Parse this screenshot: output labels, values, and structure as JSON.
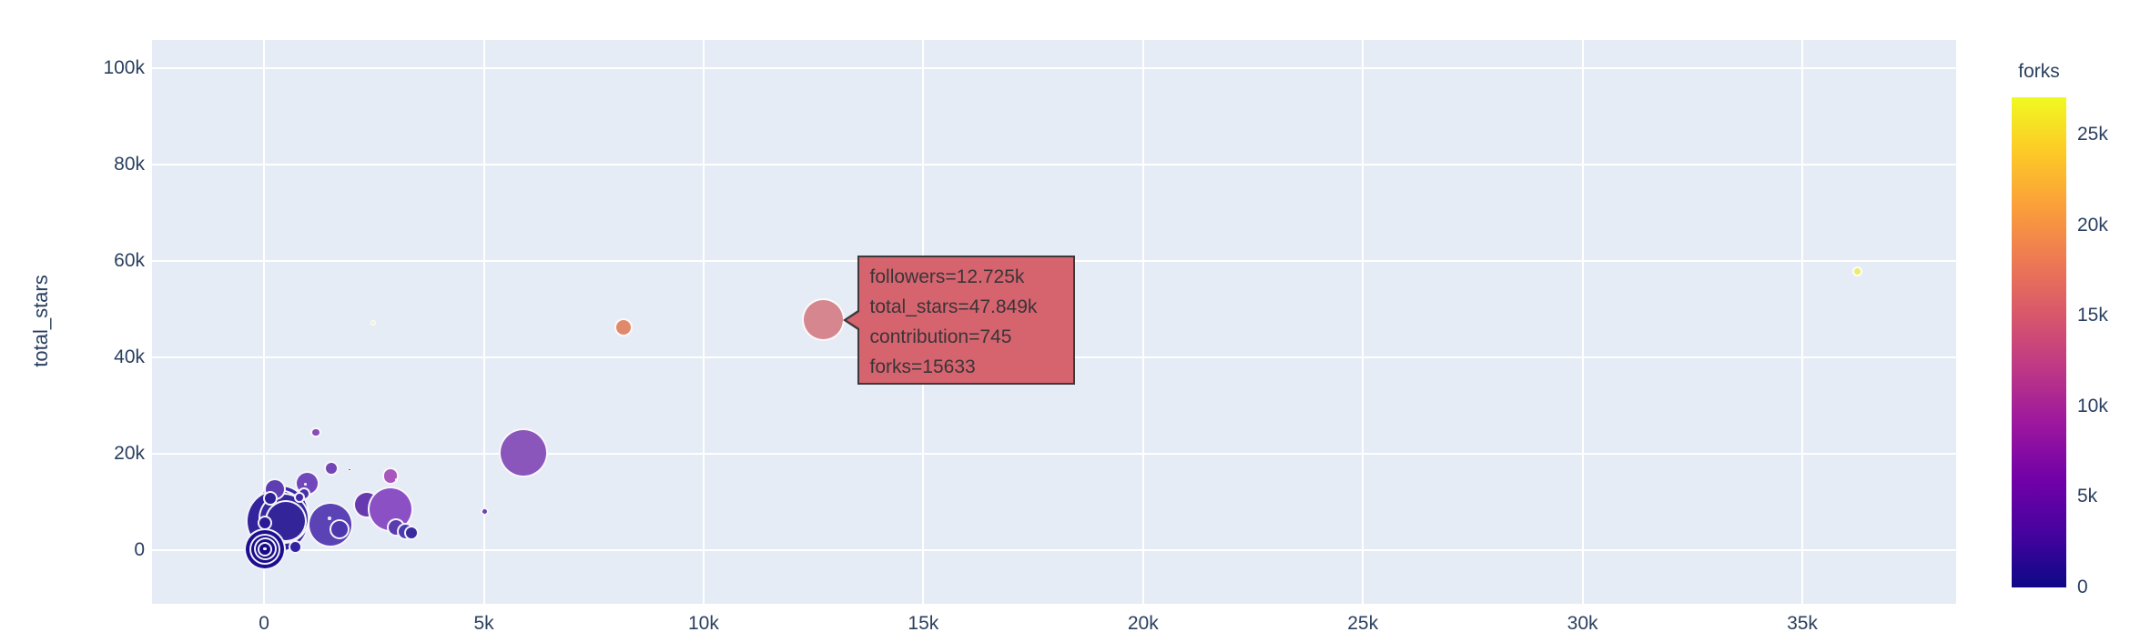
{
  "colors": {
    "page_bg": "#ffffff",
    "plot_bg": "#e5ecf6",
    "grid": "#ffffff",
    "text": "#2a3f5f",
    "marker_outline": "#ffffff"
  },
  "chart_data": {
    "type": "scatter",
    "title": "",
    "xlabel": "",
    "ylabel": "total_stars",
    "x_field": "followers",
    "y_field": "total_stars",
    "size_field": "contribution",
    "color_field": "forks",
    "grid": true,
    "x_axis": {
      "range": [
        -2550,
        38500
      ],
      "ticks": [
        {
          "label": "0",
          "value": 0
        },
        {
          "label": "5k",
          "value": 5000
        },
        {
          "label": "10k",
          "value": 10000
        },
        {
          "label": "15k",
          "value": 15000
        },
        {
          "label": "20k",
          "value": 20000
        },
        {
          "label": "25k",
          "value": 25000
        },
        {
          "label": "30k",
          "value": 30000
        },
        {
          "label": "35k",
          "value": 35000
        }
      ]
    },
    "y_axis": {
      "range": [
        -11100,
        105900
      ],
      "ticks": [
        {
          "label": "0",
          "value": 0
        },
        {
          "label": "20k",
          "value": 20000
        },
        {
          "label": "40k",
          "value": 40000
        },
        {
          "label": "60k",
          "value": 60000
        },
        {
          "label": "80k",
          "value": 80000
        },
        {
          "label": "100k",
          "value": 100000
        }
      ]
    },
    "colorbar": {
      "title": "forks",
      "min": 0,
      "max": 27070,
      "ticks": [
        {
          "label": "0",
          "value": 0
        },
        {
          "label": "5k",
          "value": 5000
        },
        {
          "label": "10k",
          "value": 10000
        },
        {
          "label": "15k",
          "value": 15000
        },
        {
          "label": "20k",
          "value": 20000
        },
        {
          "label": "25k",
          "value": 25000
        }
      ],
      "colorscale_name": "plasma",
      "colorscale_stops": [
        "#0d0887",
        "#46039f",
        "#7201a8",
        "#9c179e",
        "#bd3786",
        "#d8576b",
        "#ed7953",
        "#fb9f3a",
        "#fdca26",
        "#f0f921"
      ]
    },
    "hover": {
      "point_index": 33,
      "lines": [
        "followers=12.725k",
        "total_stars=47.849k",
        "contribution=745",
        "forks=15633"
      ],
      "values": {
        "followers": 12725,
        "total_stars": 47849,
        "contribution": 745,
        "forks": 15633
      },
      "bg": "#d5646e",
      "border": "#3d383a",
      "text_color": "#3b3438"
    },
    "points": [
      {
        "followers": 370,
        "total_stars": 7640,
        "forks": 2800,
        "r": 32,
        "color": "#3b2aa4"
      },
      {
        "followers": 310,
        "total_stars": 6100,
        "forks": 2400,
        "r": 35,
        "color": "#33239c"
      },
      {
        "followers": 455,
        "total_stars": 6680,
        "forks": 2600,
        "r": 28,
        "color": "#372aa0"
      },
      {
        "followers": 497,
        "total_stars": 6120,
        "forks": 2400,
        "r": 23,
        "color": "#342499"
      },
      {
        "followers": 248,
        "total_stars": 12740,
        "forks": 5200,
        "r": 12,
        "color": "#5d3fb2"
      },
      {
        "followers": 145,
        "total_stars": 10850,
        "forks": 1800,
        "r": 8,
        "color": "#2e2097"
      },
      {
        "followers": 973,
        "total_stars": 13870,
        "forks": 7200,
        "r": 13.5,
        "color": "#7148bb"
      },
      {
        "followers": 911,
        "total_stars": 11790,
        "forks": 3400,
        "r": 7,
        "color": "#4632a8"
      },
      {
        "followers": 807,
        "total_stars": 11040,
        "forks": 3000,
        "r": 6,
        "color": "#4229a5"
      },
      {
        "followers": 20,
        "total_stars": 5660,
        "forks": 1500,
        "r": 8,
        "color": "#2a1a95"
      },
      {
        "followers": 1510,
        "total_stars": 5380,
        "forks": 5000,
        "r": 25,
        "color": "#5b42b5"
      },
      {
        "followers": 1717,
        "total_stars": 4430,
        "forks": 3800,
        "r": 11,
        "color": "#4d35ad"
      },
      {
        "followers": 2338,
        "total_stars": 9530,
        "forks": 6300,
        "r": 15,
        "color": "#6739ae"
      },
      {
        "followers": 2876,
        "total_stars": 8585,
        "forks": 9800,
        "r": 25,
        "color": "#8b51c4"
      },
      {
        "followers": 3000,
        "total_stars": 4810,
        "forks": 5000,
        "r": 10,
        "color": "#5b3cae"
      },
      {
        "followers": 3227,
        "total_stars": 3870,
        "forks": 3400,
        "r": 9.5,
        "color": "#4b3bae"
      },
      {
        "followers": 3351,
        "total_stars": 3680,
        "forks": 2800,
        "r": 8,
        "color": "#3a2aa0"
      },
      {
        "followers": 21,
        "total_stars": 280,
        "forks": 300,
        "r": 23,
        "color": "#1c0e8e"
      },
      {
        "followers": 21,
        "total_stars": 280,
        "forks": 300,
        "r": 17,
        "color": "#1b0d8c"
      },
      {
        "followers": 21,
        "total_stars": 280,
        "forks": 300,
        "r": 12.5,
        "color": "#190c8a"
      },
      {
        "followers": 21,
        "total_stars": 280,
        "forks": 300,
        "r": 8,
        "color": "#180b88"
      },
      {
        "followers": 21,
        "total_stars": 280,
        "forks": 300,
        "r": 1.8,
        "color": "#efecf8"
      },
      {
        "followers": 703,
        "total_stars": 660,
        "forks": 2000,
        "r": 7.5,
        "color": "#3224a0"
      },
      {
        "followers": 1179,
        "total_stars": 24430,
        "forks": 9400,
        "r": 5.7,
        "color": "#8a4cb8"
      },
      {
        "followers": 1531,
        "total_stars": 17075,
        "forks": 6800,
        "r": 8,
        "color": "#7246b4"
      },
      {
        "followers": 1944,
        "total_stars": 16700,
        "forks": 4600,
        "r": 1.8,
        "color": "#5630a8"
      },
      {
        "followers": 2876,
        "total_stars": 15380,
        "forks": 11500,
        "r": 9.3,
        "color": "#a857bd"
      },
      {
        "followers": 3021,
        "total_stars": 14630,
        "forks": 24000,
        "r": 1.5,
        "color": "#e8ddf0"
      },
      {
        "followers": 1489,
        "total_stars": 6590,
        "forks": 22000,
        "r": 2,
        "color": "#cdc6ec"
      },
      {
        "followers": 931,
        "total_stars": 13680,
        "forks": 23000,
        "r": 1.5,
        "color": "#ded7f0"
      },
      {
        "followers": 5896,
        "total_stars": 20280,
        "forks": 9200,
        "r": 27,
        "color": "#8a56bb"
      },
      {
        "followers": 5027,
        "total_stars": 8020,
        "forks": 5600,
        "r": 4.5,
        "color": "#6a43b5"
      },
      {
        "followers": 8172,
        "total_stars": 46320,
        "forks": 17500,
        "r": 10,
        "color": "#e08a6b"
      },
      {
        "followers": 12725,
        "total_stars": 47849,
        "forks": 15633,
        "r": 23.5,
        "color": "#d5868e"
      },
      {
        "followers": 2482,
        "total_stars": 47270,
        "forks": 26000,
        "r": 3,
        "color": "#f5f2cf"
      },
      {
        "followers": 36263,
        "total_stars": 57830,
        "forks": 27000,
        "r": 5.5,
        "color": "#e9ed6d"
      }
    ]
  }
}
